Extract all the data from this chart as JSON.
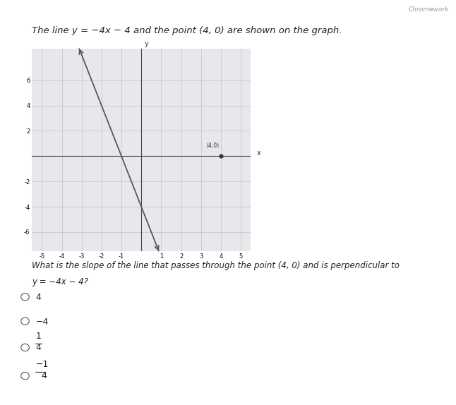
{
  "background_color": "#d0d0d8",
  "graph_bg": "#e8e8ec",
  "content_bg": "#f0f0f0",
  "grid_color": "#c8c8cc",
  "line_color": "#555566",
  "point_color": "#333344",
  "point_x": 4,
  "point_y": 0,
  "point_label": "(4,0)",
  "line_slope": -4,
  "line_intercept": -4,
  "xlim": [
    -5.5,
    5.5
  ],
  "ylim": [
    -7.5,
    8.5
  ],
  "xtick_labels": [
    "-5",
    "-4",
    "-3",
    "-2",
    "-1",
    "",
    "1",
    "2",
    "3",
    "4",
    "5"
  ],
  "xtick_vals": [
    -5,
    -4,
    -3,
    -2,
    -1,
    0,
    1,
    2,
    3,
    4,
    5
  ],
  "ytick_labels": [
    "-6",
    "-4",
    "-2",
    "",
    "2",
    "4",
    "6"
  ],
  "ytick_vals": [
    -6,
    -4,
    -2,
    0,
    2,
    4,
    6
  ],
  "title_text": "The line y = −4x − 4 and the point (4, 0) are shown on the graph.",
  "question_line1": "What is the slope of the line that passes through the point (4, 0) and is perpendicular to",
  "question_line2": "y = −4x − 4?",
  "options": [
    "4",
    "−4",
    "1/4",
    "−1/4"
  ],
  "axis_label_x": "x",
  "axis_label_y": "y",
  "watermark": "Chromework"
}
